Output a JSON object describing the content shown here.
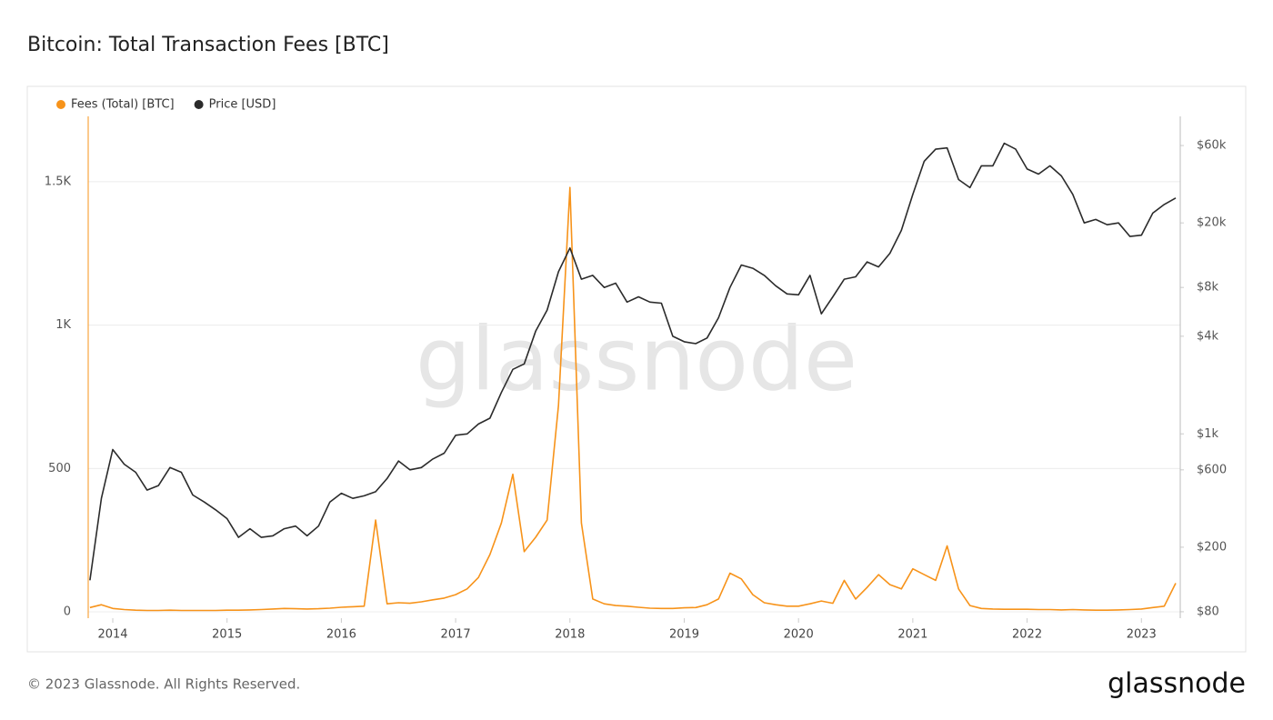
{
  "chart_data": {
    "type": "line",
    "title": "Bitcoin: Total Transaction Fees [BTC]",
    "watermark": "glassnode",
    "footer": "© 2023 Glassnode. All Rights Reserved.",
    "logo": "glassnode",
    "x": [
      2013.8,
      2013.9,
      2014.0,
      2014.1,
      2014.2,
      2014.3,
      2014.4,
      2014.5,
      2014.6,
      2014.7,
      2014.8,
      2014.9,
      2015.0,
      2015.1,
      2015.2,
      2015.3,
      2015.4,
      2015.5,
      2015.6,
      2015.7,
      2015.8,
      2015.9,
      2016.0,
      2016.1,
      2016.2,
      2016.3,
      2016.4,
      2016.5,
      2016.6,
      2016.7,
      2016.8,
      2016.9,
      2017.0,
      2017.1,
      2017.2,
      2017.3,
      2017.4,
      2017.5,
      2017.6,
      2017.7,
      2017.8,
      2017.9,
      2018.0,
      2018.1,
      2018.2,
      2018.3,
      2018.4,
      2018.5,
      2018.6,
      2018.7,
      2018.8,
      2018.9,
      2019.0,
      2019.1,
      2019.2,
      2019.3,
      2019.4,
      2019.5,
      2019.6,
      2019.7,
      2019.8,
      2019.9,
      2020.0,
      2020.1,
      2020.2,
      2020.3,
      2020.4,
      2020.5,
      2020.6,
      2020.7,
      2020.8,
      2020.9,
      2021.0,
      2021.1,
      2021.2,
      2021.3,
      2021.4,
      2021.5,
      2021.6,
      2021.7,
      2021.8,
      2021.9,
      2022.0,
      2022.1,
      2022.2,
      2022.3,
      2022.4,
      2022.5,
      2022.6,
      2022.7,
      2022.8,
      2022.9,
      2023.0,
      2023.1,
      2023.2,
      2023.3
    ],
    "xlim": [
      2013.785,
      2023.34
    ],
    "xticks": [
      2014,
      2015,
      2016,
      2017,
      2018,
      2019,
      2020,
      2021,
      2022,
      2023
    ],
    "ylim": [
      -22,
      1728
    ],
    "yticks": [
      0,
      500,
      {
        "value": 1000,
        "label": "1K"
      },
      {
        "value": 1500,
        "label": "1.5K"
      }
    ],
    "y2lim": [
      73,
      90800
    ],
    "y2log": true,
    "y2ticks": [
      {
        "value": 80,
        "label": "$80"
      },
      {
        "value": 200,
        "label": "$200"
      },
      {
        "value": 600,
        "label": "$600"
      },
      {
        "value": 1000,
        "label": "$1k"
      },
      {
        "value": 4000,
        "label": "$4k"
      },
      {
        "value": 8000,
        "label": "$8k"
      },
      {
        "value": 20000,
        "label": "$20k"
      },
      {
        "value": 60000,
        "label": "$60k"
      }
    ],
    "grid": true,
    "series": [
      {
        "name": "Fees (Total) [BTC]",
        "color": "#f7931a",
        "values": [
          15,
          25,
          12,
          8,
          6,
          5,
          5,
          6,
          5,
          5,
          5,
          5,
          6,
          6,
          7,
          8,
          10,
          12,
          11,
          10,
          11,
          13,
          16,
          18,
          20,
          320,
          28,
          32,
          30,
          35,
          42,
          48,
          60,
          80,
          120,
          200,
          310,
          480,
          210,
          260,
          320,
          720,
          1480,
          310,
          45,
          28,
          22,
          20,
          16,
          13,
          12,
          12,
          14,
          15,
          25,
          45,
          135,
          115,
          60,
          32,
          25,
          20,
          20,
          28,
          38,
          30,
          110,
          45,
          85,
          130,
          95,
          80,
          150,
          130,
          110,
          230,
          80,
          22,
          12,
          10,
          9,
          9,
          9,
          8,
          8,
          7,
          8,
          7,
          6,
          6,
          7,
          8,
          10,
          15,
          20,
          100
        ]
      },
      {
        "name": "Price [USD]",
        "color": "#2b2b2b",
        "axis": "y2",
        "values": [
          125,
          400,
          800,
          650,
          580,
          450,
          480,
          620,
          580,
          420,
          380,
          340,
          300,
          230,
          260,
          230,
          235,
          260,
          270,
          235,
          270,
          380,
          430,
          400,
          415,
          440,
          530,
          680,
          600,
          620,
          700,
          760,
          980,
          1000,
          1150,
          1250,
          1800,
          2500,
          2700,
          4300,
          5800,
          10000,
          14000,
          9000,
          9500,
          8000,
          8500,
          6500,
          7000,
          6500,
          6400,
          4000,
          3700,
          3600,
          3900,
          5200,
          8000,
          11000,
          10500,
          9500,
          8200,
          7300,
          7200,
          9500,
          5500,
          7000,
          9000,
          9300,
          11500,
          10700,
          13000,
          18000,
          30000,
          48000,
          57000,
          58000,
          37000,
          33000,
          45000,
          45000,
          62000,
          57000,
          43000,
          40000,
          45000,
          39000,
          30000,
          20000,
          21000,
          19500,
          20000,
          16500,
          16800,
          23000,
          26000,
          28500
        ]
      }
    ]
  }
}
